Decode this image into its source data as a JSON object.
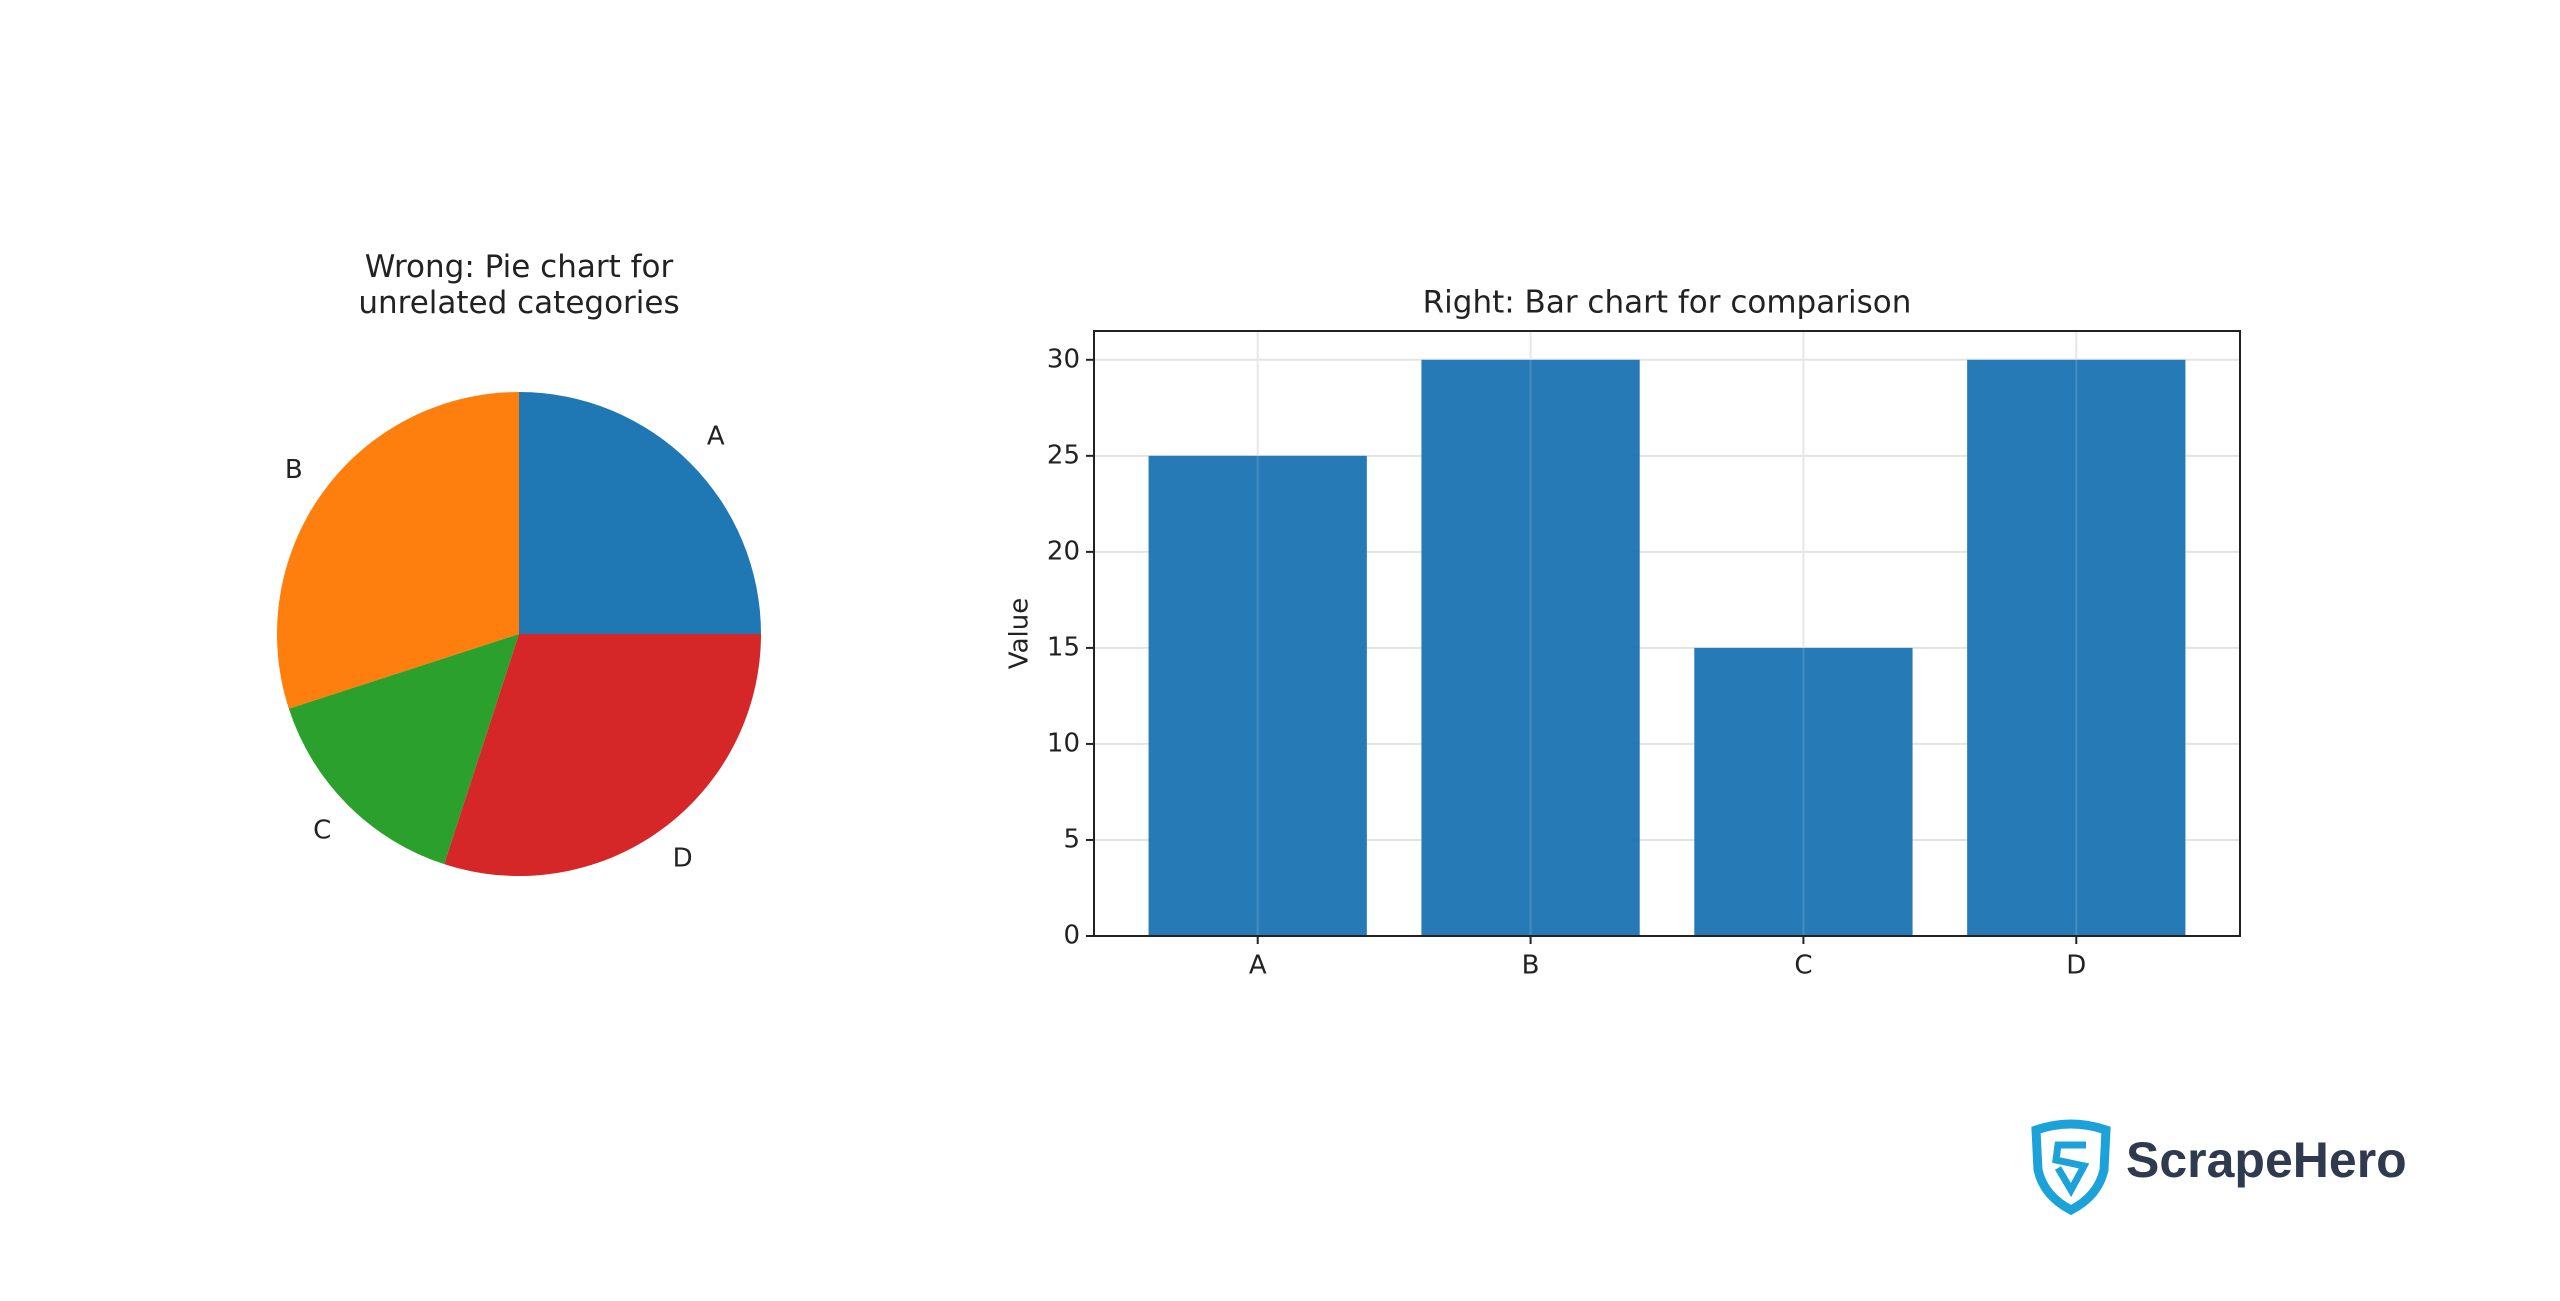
{
  "chart_data": [
    {
      "type": "pie",
      "title": "Wrong: Pie chart for\nunrelated categories",
      "categories": [
        "A",
        "B",
        "C",
        "D"
      ],
      "values": [
        25,
        30,
        15,
        30
      ],
      "colors": [
        "#1f77b4",
        "#ff7f0e",
        "#2ca02c",
        "#d62728"
      ]
    },
    {
      "type": "bar",
      "title": "Right: Bar chart for comparison",
      "y_label": "Value",
      "categories": [
        "A",
        "B",
        "C",
        "D"
      ],
      "series": [
        {
          "name": "Value",
          "color": "#1f77b4",
          "values": [
            25,
            30,
            15,
            30
          ]
        }
      ],
      "ylim": [
        0,
        31.5
      ],
      "yticks": [
        0,
        5,
        10,
        15,
        20,
        25,
        30
      ],
      "grid": true
    }
  ],
  "brand": "ScrapeHero"
}
